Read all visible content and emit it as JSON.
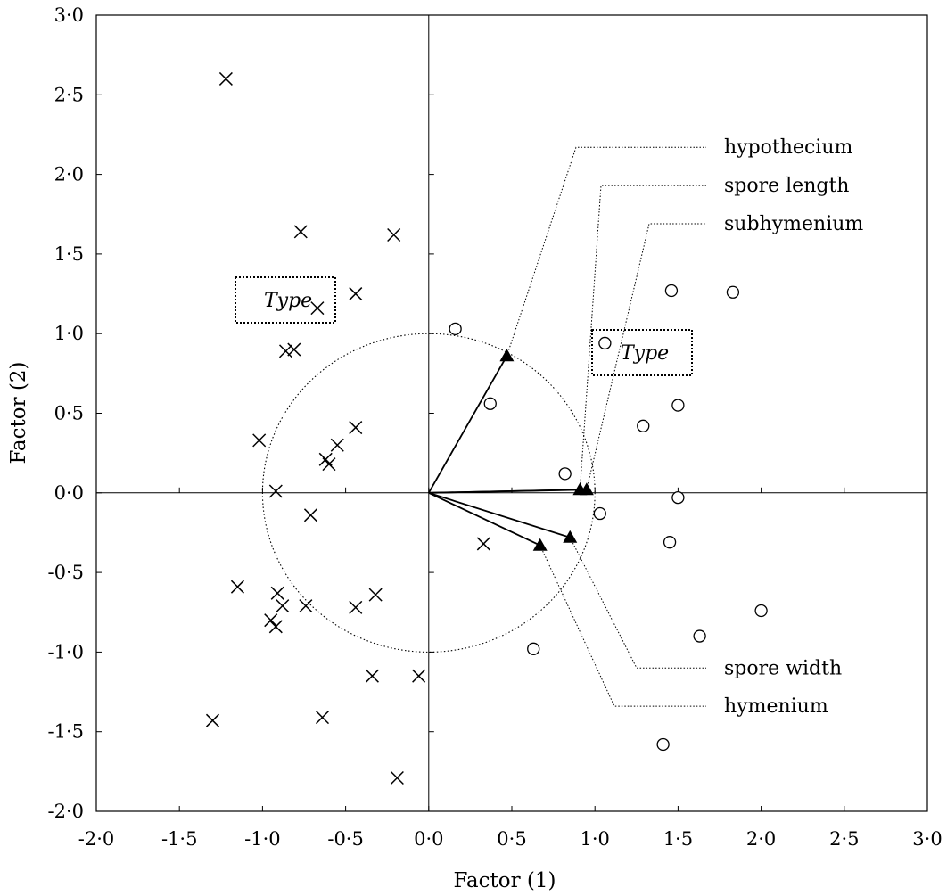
{
  "chart_data": {
    "type": "scatter",
    "title": "",
    "xlabel": "Factor (1)",
    "ylabel": "Factor (2)",
    "xlim": [
      -2.0,
      3.0
    ],
    "ylim": [
      -2.0,
      3.0
    ],
    "x_ticks": [
      "-2·0",
      "-1·5",
      "-1·0",
      "-0·5",
      "0·0",
      "0·5",
      "1·0",
      "1·5",
      "2·0",
      "2·5",
      "3·0"
    ],
    "y_ticks": [
      "3·0",
      "2·5",
      "2·0",
      "1·5",
      "1·0",
      "0·5",
      "0·0",
      "-0·5",
      "-1·0",
      "-1·5",
      "-2·0"
    ],
    "grid": false,
    "unit_circle_radius": 1.0,
    "series": [
      {
        "marker": "x",
        "points": [
          [
            -1.22,
            2.6
          ],
          [
            -0.77,
            1.64
          ],
          [
            -0.21,
            1.62
          ],
          [
            -0.44,
            1.25
          ],
          [
            -0.67,
            1.16
          ],
          [
            -0.86,
            0.89
          ],
          [
            -0.81,
            0.9
          ],
          [
            -1.02,
            0.33
          ],
          [
            -0.55,
            0.3
          ],
          [
            -0.62,
            0.21
          ],
          [
            -0.6,
            0.18
          ],
          [
            -0.44,
            0.41
          ],
          [
            -0.92,
            0.01
          ],
          [
            -0.71,
            -0.14
          ],
          [
            -1.15,
            -0.59
          ],
          [
            -0.91,
            -0.63
          ],
          [
            -0.88,
            -0.71
          ],
          [
            -0.74,
            -0.71
          ],
          [
            -0.44,
            -0.72
          ],
          [
            -0.32,
            -0.64
          ],
          [
            -0.95,
            -0.8
          ],
          [
            -0.92,
            -0.84
          ],
          [
            -1.3,
            -1.43
          ],
          [
            -0.64,
            -1.41
          ],
          [
            -0.34,
            -1.15
          ],
          [
            -0.06,
            -1.15
          ],
          [
            -0.19,
            -1.79
          ],
          [
            0.33,
            -0.32
          ]
        ]
      },
      {
        "marker": "circle",
        "points": [
          [
            0.16,
            1.03
          ],
          [
            0.37,
            0.56
          ],
          [
            1.06,
            0.94
          ],
          [
            1.46,
            1.27
          ],
          [
            1.83,
            1.26
          ],
          [
            1.5,
            0.55
          ],
          [
            1.29,
            0.42
          ],
          [
            0.82,
            0.12
          ],
          [
            1.5,
            -0.03
          ],
          [
            1.03,
            -0.13
          ],
          [
            1.45,
            -0.31
          ],
          [
            1.63,
            -0.9
          ],
          [
            2.0,
            -0.74
          ],
          [
            0.63,
            -0.98
          ],
          [
            1.41,
            -1.58
          ]
        ]
      }
    ],
    "vectors": [
      {
        "name": "hypothecium",
        "x": 0.47,
        "y": 0.86,
        "label_y": 2.17
      },
      {
        "name": "spore length",
        "x": 0.91,
        "y": 0.02,
        "label_y": 1.93
      },
      {
        "name": "subhymenium",
        "x": 0.95,
        "y": 0.02,
        "label_y": 1.69
      },
      {
        "name": "spore width",
        "x": 0.85,
        "y": -0.28,
        "label_y": -1.1
      },
      {
        "name": "hymenium",
        "x": 0.67,
        "y": -0.33,
        "label_y": -1.34
      }
    ],
    "type_boxes": [
      {
        "label": "Type",
        "near_series": "x"
      },
      {
        "label": "Type",
        "near_series": "circle"
      }
    ]
  }
}
